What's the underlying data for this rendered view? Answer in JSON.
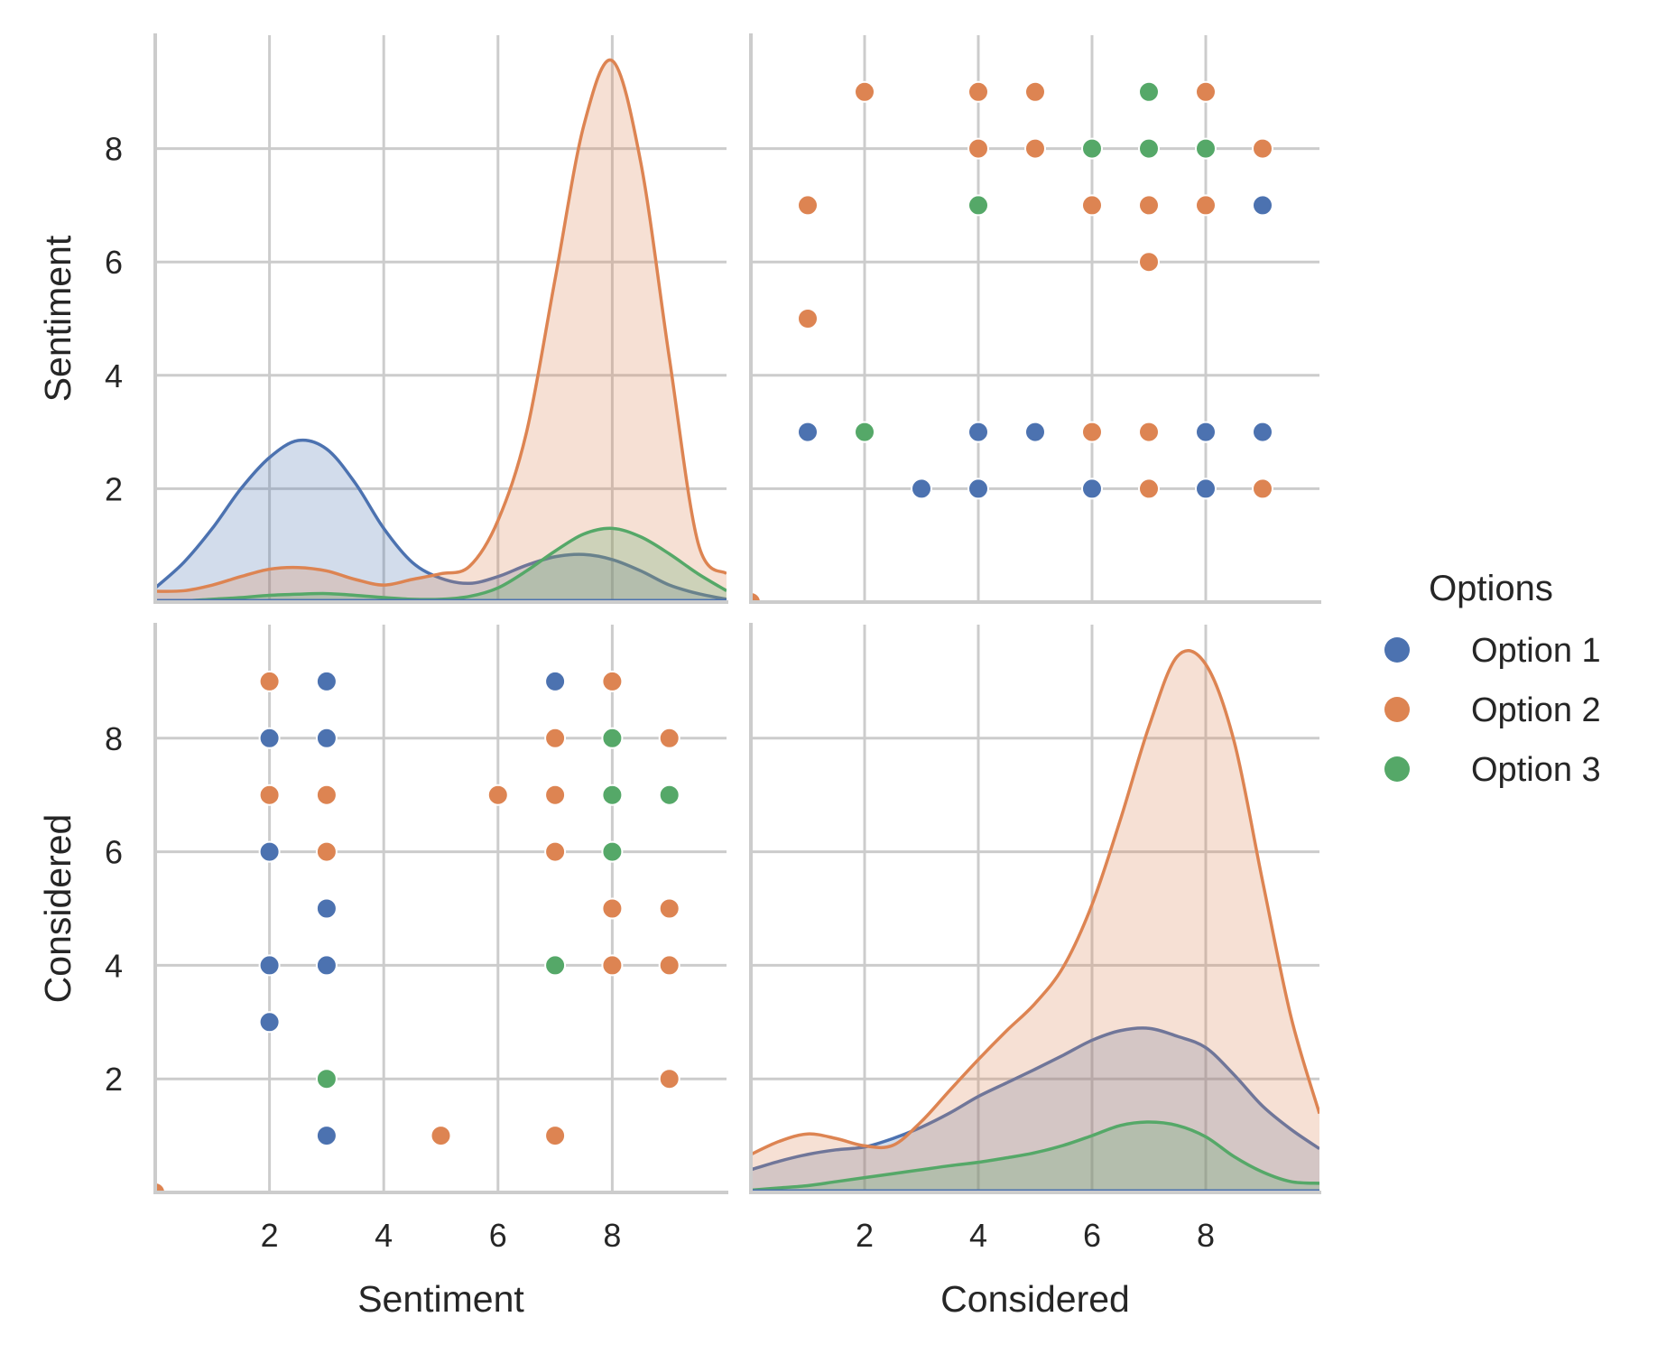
{
  "chart_data": {
    "type": "scatter",
    "kind": "pairplot",
    "variables": [
      "Sentiment",
      "Considered"
    ],
    "xlabels": [
      "Sentiment",
      "Considered"
    ],
    "ylabels": [
      "Sentiment",
      "Considered"
    ],
    "xlim": [
      0,
      10
    ],
    "ylim": [
      0,
      10
    ],
    "ticks": [
      2,
      4,
      6,
      8
    ],
    "tick_labels": [
      "2",
      "4",
      "6",
      "8"
    ],
    "grid": true,
    "legend": {
      "title": "Options",
      "placement": "right",
      "entries": [
        "Option 1",
        "Option 2",
        "Option 3"
      ]
    },
    "colors": {
      "Option 1": "#4c72b0",
      "Option 2": "#dd8452",
      "Option 3": "#55a868"
    },
    "points": [
      {
        "option": "Option 2",
        "sentiment": 9,
        "considered": 2
      },
      {
        "option": "Option 2",
        "sentiment": 9,
        "considered": 4
      },
      {
        "option": "Option 2",
        "sentiment": 9,
        "considered": 5
      },
      {
        "option": "Option 2",
        "sentiment": 9,
        "considered": 8
      },
      {
        "option": "Option 2",
        "sentiment": 8,
        "considered": 4
      },
      {
        "option": "Option 2",
        "sentiment": 8,
        "considered": 5
      },
      {
        "option": "Option 2",
        "sentiment": 8,
        "considered": 9
      },
      {
        "option": "Option 2",
        "sentiment": 7,
        "considered": 1
      },
      {
        "option": "Option 2",
        "sentiment": 7,
        "considered": 6
      },
      {
        "option": "Option 2",
        "sentiment": 7,
        "considered": 7
      },
      {
        "option": "Option 2",
        "sentiment": 7,
        "considered": 8
      },
      {
        "option": "Option 2",
        "sentiment": 6,
        "considered": 7
      },
      {
        "option": "Option 2",
        "sentiment": 5,
        "considered": 1
      },
      {
        "option": "Option 2",
        "sentiment": 3,
        "considered": 6
      },
      {
        "option": "Option 2",
        "sentiment": 3,
        "considered": 7
      },
      {
        "option": "Option 2",
        "sentiment": 2,
        "considered": 7
      },
      {
        "option": "Option 2",
        "sentiment": 2,
        "considered": 9
      },
      {
        "option": "Option 2",
        "sentiment": 0,
        "considered": 0
      },
      {
        "option": "Option 3",
        "sentiment": 9,
        "considered": 7
      },
      {
        "option": "Option 3",
        "sentiment": 8,
        "considered": 6
      },
      {
        "option": "Option 3",
        "sentiment": 8,
        "considered": 7
      },
      {
        "option": "Option 3",
        "sentiment": 8,
        "considered": 8
      },
      {
        "option": "Option 3",
        "sentiment": 7,
        "considered": 4
      },
      {
        "option": "Option 3",
        "sentiment": 3,
        "considered": 2
      },
      {
        "option": "Option 1",
        "sentiment": 7,
        "considered": 9
      },
      {
        "option": "Option 1",
        "sentiment": 3,
        "considered": 1
      },
      {
        "option": "Option 1",
        "sentiment": 3,
        "considered": 4
      },
      {
        "option": "Option 1",
        "sentiment": 3,
        "considered": 5
      },
      {
        "option": "Option 1",
        "sentiment": 3,
        "considered": 8
      },
      {
        "option": "Option 1",
        "sentiment": 3,
        "considered": 9
      },
      {
        "option": "Option 1",
        "sentiment": 2,
        "considered": 3
      },
      {
        "option": "Option 1",
        "sentiment": 2,
        "considered": 4
      },
      {
        "option": "Option 1",
        "sentiment": 2,
        "considered": 6
      },
      {
        "option": "Option 1",
        "sentiment": 2,
        "considered": 8
      }
    ],
    "kde": {
      "x": [
        0,
        0.5,
        1,
        1.5,
        2,
        2.5,
        3,
        3.5,
        4,
        4.5,
        5,
        5.5,
        6,
        6.5,
        7,
        7.5,
        8,
        8.5,
        9,
        9.5,
        10
      ],
      "Sentiment": [
        {
          "option": "Option 1",
          "values": [
            0.25,
            0.7,
            1.3,
            2.0,
            2.55,
            2.85,
            2.7,
            2.1,
            1.3,
            0.7,
            0.42,
            0.33,
            0.45,
            0.65,
            0.8,
            0.84,
            0.75,
            0.55,
            0.3,
            0.15,
            0.05
          ]
        },
        {
          "option": "Option 2",
          "values": [
            0.19,
            0.2,
            0.3,
            0.45,
            0.58,
            0.61,
            0.55,
            0.4,
            0.3,
            0.4,
            0.5,
            0.63,
            1.44,
            3.0,
            5.7,
            8.4,
            9.55,
            7.75,
            4.3,
            1.05,
            0.5
          ]
        },
        {
          "option": "Option 3",
          "values": [
            0.0,
            0.02,
            0.05,
            0.08,
            0.12,
            0.14,
            0.15,
            0.12,
            0.08,
            0.05,
            0.05,
            0.1,
            0.25,
            0.55,
            0.9,
            1.2,
            1.3,
            1.15,
            0.85,
            0.5,
            0.2
          ]
        }
      ],
      "Considered": [
        {
          "option": "Option 1",
          "values": [
            0.4,
            0.55,
            0.67,
            0.75,
            0.8,
            0.95,
            1.15,
            1.4,
            1.69,
            1.93,
            2.17,
            2.42,
            2.68,
            2.85,
            2.89,
            2.75,
            2.55,
            2.07,
            1.52,
            1.11,
            0.77
          ]
        },
        {
          "option": "Option 2",
          "values": [
            0.67,
            0.9,
            1.03,
            0.95,
            0.82,
            0.83,
            1.25,
            1.8,
            2.34,
            2.85,
            3.33,
            3.98,
            5.07,
            6.57,
            8.2,
            9.44,
            9.3,
            7.94,
            5.48,
            3.09,
            1.39
          ]
        },
        {
          "option": "Option 3",
          "values": [
            0.04,
            0.08,
            0.12,
            0.19,
            0.26,
            0.33,
            0.4,
            0.47,
            0.53,
            0.61,
            0.7,
            0.83,
            1.0,
            1.18,
            1.24,
            1.18,
            0.98,
            0.63,
            0.36,
            0.19,
            0.16
          ]
        }
      ]
    }
  }
}
